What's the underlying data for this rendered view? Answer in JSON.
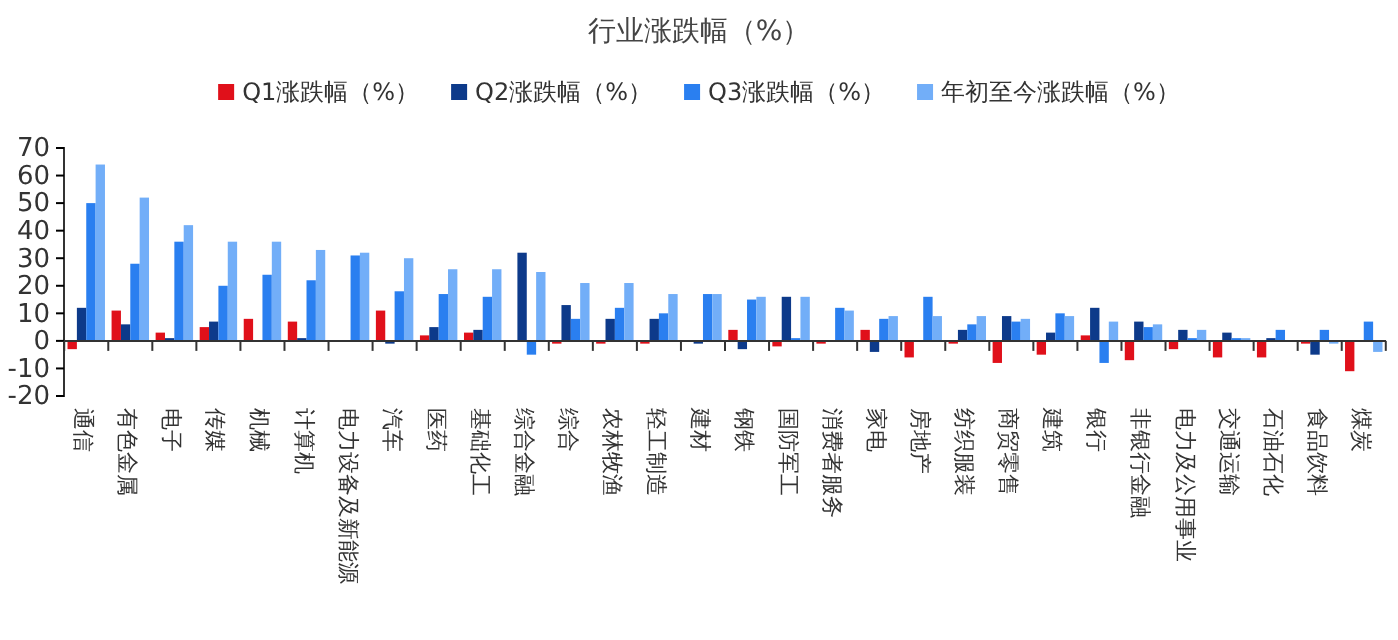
{
  "chart_data": {
    "type": "bar",
    "title": "行业涨跌幅（%）",
    "legend": "top",
    "categories": [
      "通信",
      "有色金属",
      "电子",
      "传媒",
      "机械",
      "计算机",
      "电力设备及新能源",
      "汽车",
      "医药",
      "基础化工",
      "综合金融",
      "综合",
      "农林牧渔",
      "轻工制造",
      "建材",
      "钢铁",
      "国防军工",
      "消费者服务",
      "家电",
      "房地产",
      "纺织服装",
      "商贸零售",
      "建筑",
      "银行",
      "非银行金融",
      "电力及公用事业",
      "交通运输",
      "石油石化",
      "食品饮料",
      "煤炭"
    ],
    "series": [
      {
        "name": "Q1涨跌幅（%）",
        "color": "#e0101a",
        "values": [
          -3,
          11,
          3,
          5,
          8,
          7,
          0,
          11,
          2,
          3,
          0,
          -1,
          -1,
          -1,
          0,
          4,
          -2,
          -1,
          4,
          -6,
          -1,
          -8,
          -5,
          2,
          -7,
          -3,
          -6,
          -6,
          -1,
          -11
        ]
      },
      {
        "name": "Q2涨跌幅（%）",
        "color": "#0d3a8a",
        "values": [
          12,
          6,
          1,
          7,
          0,
          1,
          0,
          -1,
          5,
          4,
          32,
          13,
          8,
          8,
          -1,
          -3,
          16,
          0,
          -4,
          0,
          4,
          9,
          3,
          12,
          7,
          4,
          3,
          1,
          -5,
          0
        ]
      },
      {
        "name": "Q3涨跌幅（%）",
        "color": "#2a7ff0",
        "values": [
          50,
          28,
          36,
          20,
          24,
          22,
          31,
          18,
          17,
          16,
          -5,
          8,
          12,
          10,
          17,
          15,
          1,
          12,
          8,
          16,
          6,
          7,
          10,
          -8,
          5,
          1,
          1,
          4,
          4,
          7
        ]
      },
      {
        "name": "年初至今涨跌幅（%）",
        "color": "#72aef8",
        "values": [
          64,
          52,
          42,
          36,
          36,
          33,
          32,
          30,
          26,
          26,
          25,
          21,
          21,
          17,
          17,
          16,
          16,
          11,
          9,
          9,
          9,
          8,
          9,
          7,
          6,
          4,
          1,
          0,
          -1,
          -4
        ]
      }
    ],
    "ylim": [
      -20,
      70
    ],
    "yticks": [
      -20,
      -10,
      0,
      10,
      20,
      30,
      40,
      50,
      60,
      70
    ]
  }
}
